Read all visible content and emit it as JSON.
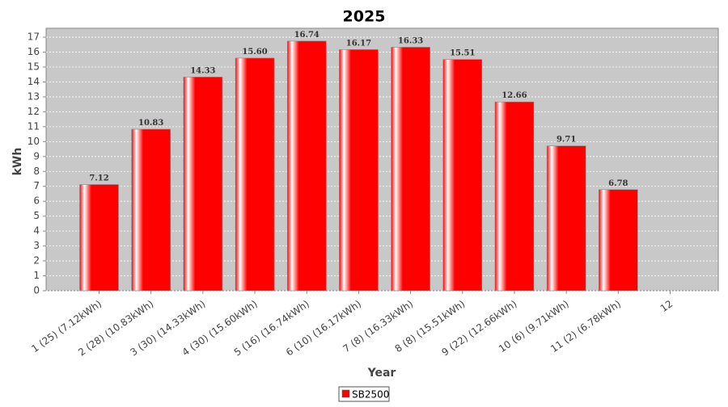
{
  "chart_data": {
    "type": "bar",
    "title": "2025",
    "x_label": "Year",
    "y_label": "kWh",
    "categories": [
      "1 (25)  (7.12kWh)",
      "2 (28)  (10.83kWh)",
      "3 (30)  (14.33kWh)",
      "4 (30)  (15.60kWh)",
      "5 (16)  (16.74kWh)",
      "6 (10)  (16.17kWh)",
      "7 (8)  (16.33kWh)",
      "8 (8)  (15.51kWh)",
      "9 (22)  (12.66kWh)",
      "10 (6)  (9.71kWh)",
      "11 (2)  (6.78kWh)",
      "12"
    ],
    "series": [
      {
        "name": "SB2500",
        "color": "#ff0000",
        "values": [
          7.12,
          10.83,
          14.33,
          15.6,
          16.74,
          16.17,
          16.33,
          15.51,
          12.66,
          9.71,
          6.78,
          0
        ],
        "value_labels": [
          "7.12",
          "10.83",
          "14.33",
          "15.60",
          "16.74",
          "16.17",
          "16.33",
          "15.51",
          "12.66",
          "9.71",
          "6.78",
          null
        ]
      }
    ],
    "ylim": [
      0,
      17.6
    ],
    "yticks": [
      0,
      1,
      2,
      3,
      4,
      5,
      6,
      7,
      8,
      9,
      10,
      11,
      12,
      13,
      14,
      15,
      16,
      17
    ],
    "grid": true,
    "legend": "bottom"
  }
}
